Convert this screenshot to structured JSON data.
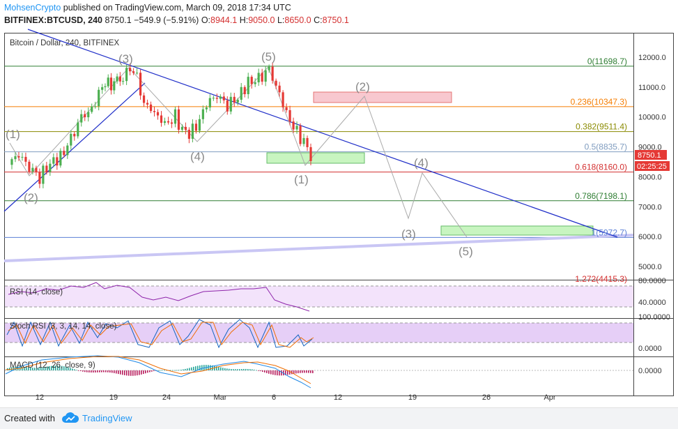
{
  "header": {
    "author": "MohsenCrypto",
    "published": "published on TradingView.com, March 09, 2018 17:34 UTC",
    "symbol": "BITFINEX:BTCUSD, 240",
    "price": "8750.1",
    "change": "−549.9 (−5.91%)",
    "o_label": "O:",
    "o_value": "8944.1",
    "h_label": "H:",
    "h_value": "9050.0",
    "l_label": "L:",
    "l_value": "8650.0",
    "c_label": "C:",
    "c_value": "8750.1"
  },
  "footer": {
    "created_with": "Created with",
    "brand": "TradingView"
  },
  "colors": {
    "up": "#4caf50",
    "down": "#e53935",
    "trendline": "#1e2dc8",
    "wave": "#9e9e9e",
    "rsi_bg": "#f3e3fb",
    "stoch_bg": "#e6cff7",
    "target_red": "#f8c8cf",
    "target_green": "#c8f5c0"
  },
  "chart_data": {
    "type": "candlestick",
    "title": "Bitcoin / Dollar, 240, BITFINEX",
    "ylim": [
      4200,
      12500
    ],
    "yticks": [
      "12000.0",
      "11000.0",
      "10000.0",
      "9000.0",
      "8000.0",
      "7000.0",
      "6000.0",
      "5000.0"
    ],
    "ytick_values": [
      12000,
      11000,
      10000,
      9000,
      8000,
      7000,
      6000,
      5000
    ],
    "xticks": [
      "12",
      "19",
      "24",
      "Mar",
      "6",
      "12",
      "19",
      "26",
      "Apr"
    ],
    "current_price_tag": "8750.1",
    "countdown_tag": "02:25:25",
    "price_path": [
      [
        "2018-02-08",
        8400
      ],
      [
        "2018-02-09",
        8700
      ],
      [
        "2018-02-10",
        8300
      ],
      [
        "2018-02-11",
        8000
      ],
      [
        "2018-02-12",
        8500
      ],
      [
        "2018-02-13",
        8700
      ],
      [
        "2018-02-14",
        9300
      ],
      [
        "2018-02-15",
        10000
      ],
      [
        "2018-02-16",
        10200
      ],
      [
        "2018-02-17",
        11000
      ],
      [
        "2018-02-19",
        11300
      ],
      [
        "2018-02-20",
        11650
      ],
      [
        "2018-02-21",
        10500
      ],
      [
        "2018-02-22",
        10200
      ],
      [
        "2018-02-23",
        9800
      ],
      [
        "2018-02-24",
        10000
      ],
      [
        "2018-02-25",
        9400
      ],
      [
        "2018-02-26",
        9600
      ],
      [
        "2018-02-27",
        10400
      ],
      [
        "2018-02-28",
        10700
      ],
      [
        "2018-03-01",
        10400
      ],
      [
        "2018-03-02",
        10700
      ],
      [
        "2018-03-03",
        11200
      ],
      [
        "2018-03-04",
        11300
      ],
      [
        "2018-03-05",
        11600
      ],
      [
        "2018-03-06",
        10700
      ],
      [
        "2018-03-07",
        9800
      ],
      [
        "2018-03-08",
        9300
      ],
      [
        "2018-03-09",
        8750.1
      ]
    ],
    "fib_levels": [
      {
        "label": "0(11698.7)",
        "value": 11698.7,
        "color": "#2e7d32"
      },
      {
        "label": "0.236(10347.3)",
        "value": 10347.3,
        "color": "#f57c00"
      },
      {
        "label": "0.382(9511.4)",
        "value": 9511.4,
        "color": "#8a8a00"
      },
      {
        "label": "0.5(8835.7)",
        "value": 8835.7,
        "color": "#7f9cbf"
      },
      {
        "label": "0.618(8160.0)",
        "value": 8160.0,
        "color": "#d32f2f"
      },
      {
        "label": "0.786(7198.1)",
        "value": 7198.1,
        "color": "#2e7d32"
      },
      {
        "label": "1(5972.7)",
        "value": 5972.7,
        "color": "#5b7fd6"
      },
      {
        "label": "1.272(4415.3)",
        "value": 4415.3,
        "color": "#d32f2f"
      }
    ],
    "wave_labels": [
      "(1)",
      "(2)",
      "(3)",
      "(4)",
      "(5)",
      "(1)",
      "(2)",
      "(3)",
      "(4)",
      "(5)"
    ],
    "indicators": [
      {
        "name": "RSI (14, close)",
        "ticks": [
          "80.0000",
          "40.0000"
        ]
      },
      {
        "name": "Stoch RSI (3, 3, 14, 14, close)",
        "ticks": [
          "100.0000",
          "0.0000"
        ]
      },
      {
        "name": "MACD (12, 26, close, 9)",
        "ticks": [
          "0.0000"
        ]
      }
    ]
  }
}
